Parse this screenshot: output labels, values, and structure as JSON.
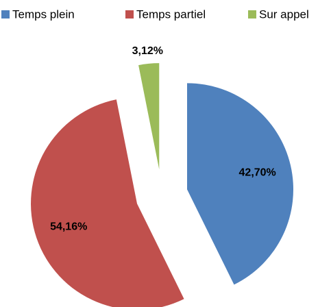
{
  "chart_data": {
    "type": "pie",
    "categories": [
      "Temps plein",
      "Temps partiel",
      "Sur appel"
    ],
    "values": [
      42.7,
      54.16,
      3.12
    ],
    "value_labels": [
      "42,70%",
      "54,16%",
      "3,12%"
    ],
    "colors": [
      "#4f81bd",
      "#c0504d",
      "#9bbb59"
    ],
    "legend": "top"
  }
}
